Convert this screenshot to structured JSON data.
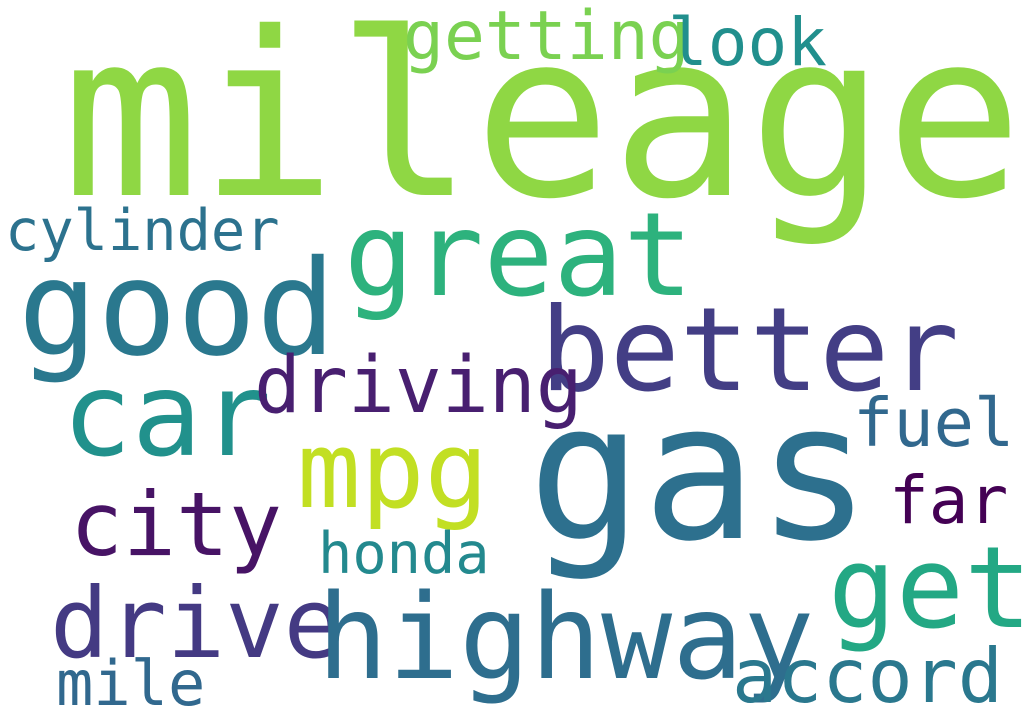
{
  "words": [
    {
      "text": "mileage",
      "color": "#8fd744"
    },
    {
      "text": "getting",
      "color": "#7ad151"
    },
    {
      "text": "look",
      "color": "#218f8d"
    },
    {
      "text": "cylinder",
      "color": "#2c728e"
    },
    {
      "text": "great",
      "color": "#2db27d"
    },
    {
      "text": "good",
      "color": "#2a788e"
    },
    {
      "text": "better",
      "color": "#433e85"
    },
    {
      "text": "car",
      "color": "#21918c"
    },
    {
      "text": "driving",
      "color": "#481f70"
    },
    {
      "text": "gas",
      "color": "#2d708e"
    },
    {
      "text": "mpg",
      "color": "#c2df23"
    },
    {
      "text": "fuel",
      "color": "#31688e"
    },
    {
      "text": "city",
      "color": "#471365"
    },
    {
      "text": "far",
      "color": "#440154"
    },
    {
      "text": "get",
      "color": "#23a884"
    },
    {
      "text": "honda",
      "color": "#23898e"
    },
    {
      "text": "drive",
      "color": "#443a83"
    },
    {
      "text": "highway",
      "color": "#2e6e8e"
    },
    {
      "text": "mile",
      "color": "#31688e"
    },
    {
      "text": "accord",
      "color": "#2a788e"
    }
  ]
}
